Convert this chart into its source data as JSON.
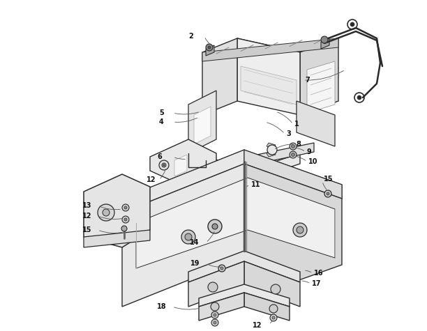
{
  "background_color": "#ffffff",
  "line_color": "#2a2a2a",
  "label_color": "#111111",
  "figure_width": 6.12,
  "figure_height": 4.75,
  "dpi": 100
}
